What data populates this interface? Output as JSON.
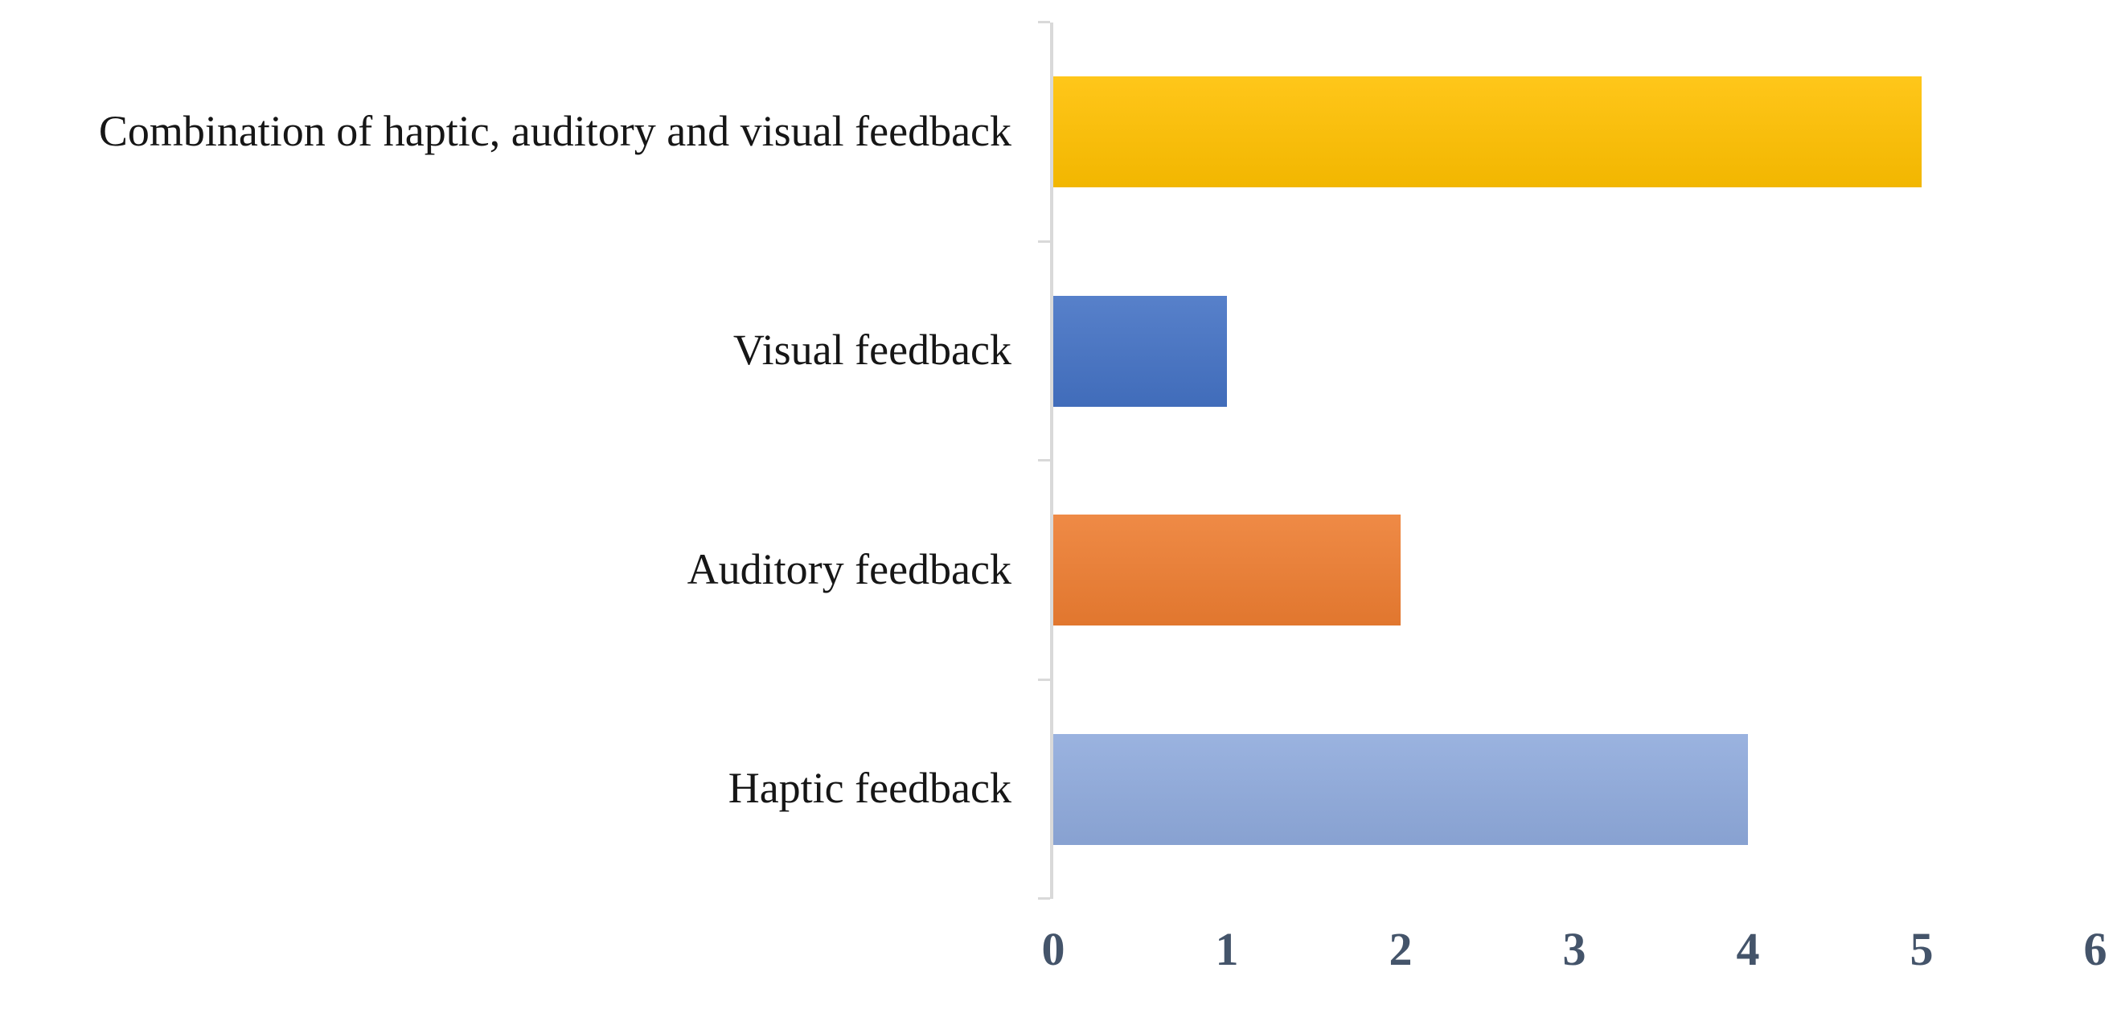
{
  "chart_data": {
    "type": "bar",
    "orientation": "horizontal",
    "title": "",
    "xlabel": "",
    "ylabel": "",
    "categories": [
      "Combination of haptic, auditory and visual feedback",
      "Visual feedback",
      "Auditory feedback",
      "Haptic feedback"
    ],
    "values": [
      1,
      2,
      4,
      5
    ],
    "bar_colors": [
      "#4472C4",
      "#ED7D31",
      "#8FAADC",
      "#FFC000"
    ],
    "xlim": [
      0,
      6
    ],
    "x_ticks": [
      "0",
      "1",
      "2",
      "3",
      "4",
      "5",
      "6"
    ],
    "grid": false,
    "legend": false,
    "axis_line_color": "#D9D9D9",
    "tick_label_color": "#44546A",
    "category_label_color": "#161616",
    "background_color": "#FFFFFF"
  }
}
